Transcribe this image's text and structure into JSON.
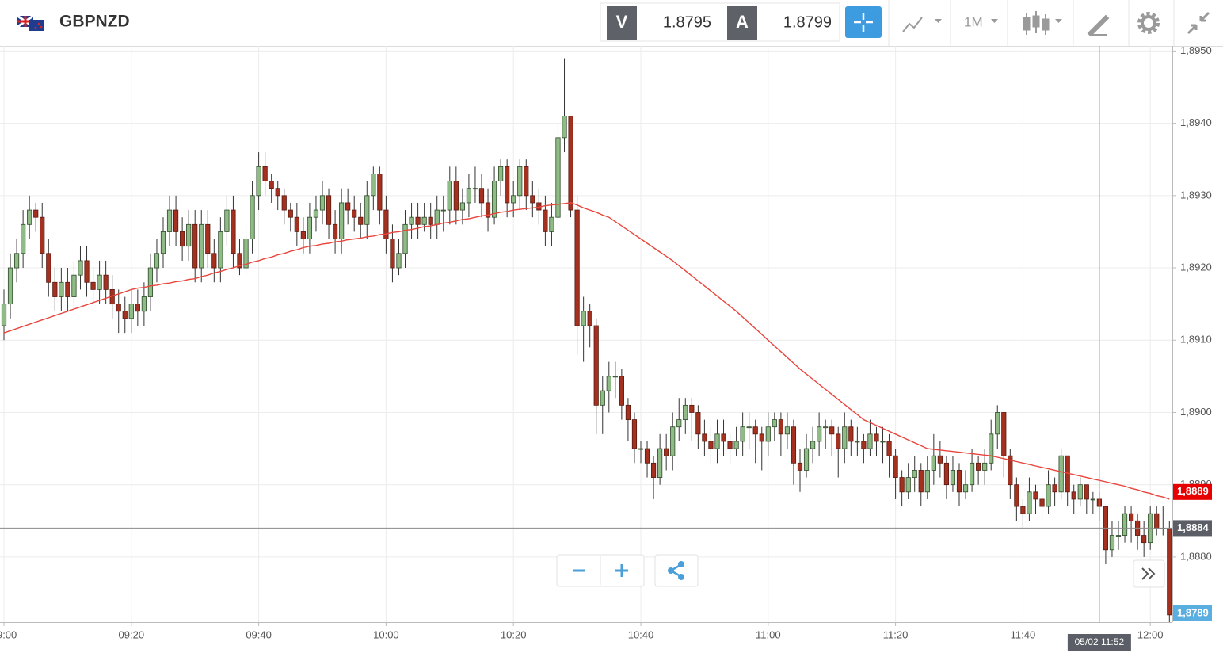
{
  "header": {
    "symbol": "GBPNZD",
    "bid_label": "V",
    "bid": "1.8795",
    "ask_label": "A",
    "ask": "1.8799",
    "timeframe": "1M"
  },
  "chart_data": {
    "type": "candlestick",
    "up_color": "#8fbc86",
    "down_color": "#a4301f",
    "candles": [
      [
        1.8912,
        1.8917,
        1.891,
        1.8915
      ],
      [
        1.8915,
        1.8922,
        1.8913,
        1.892
      ],
      [
        1.892,
        1.8924,
        1.8918,
        1.8922
      ],
      [
        1.8922,
        1.8928,
        1.892,
        1.8926
      ],
      [
        1.8926,
        1.893,
        1.8924,
        1.8928
      ],
      [
        1.8928,
        1.8929,
        1.8925,
        1.8927
      ],
      [
        1.8927,
        1.8929,
        1.892,
        1.8922
      ],
      [
        1.8922,
        1.8924,
        1.8916,
        1.8918
      ],
      [
        1.8918,
        1.892,
        1.8914,
        1.8916
      ],
      [
        1.8916,
        1.892,
        1.8914,
        1.8918
      ],
      [
        1.8918,
        1.892,
        1.8914,
        1.8916
      ],
      [
        1.8916,
        1.8921,
        1.8914,
        1.8919
      ],
      [
        1.8919,
        1.8923,
        1.8917,
        1.8921
      ],
      [
        1.8921,
        1.8923,
        1.8916,
        1.8918
      ],
      [
        1.8918,
        1.892,
        1.8915,
        1.8917
      ],
      [
        1.8917,
        1.8921,
        1.8915,
        1.8919
      ],
      [
        1.8919,
        1.8921,
        1.8915,
        1.8917
      ],
      [
        1.8917,
        1.8919,
        1.8913,
        1.8915
      ],
      [
        1.8915,
        1.8917,
        1.8911,
        1.8914
      ],
      [
        1.8914,
        1.8916,
        1.8911,
        1.8913
      ],
      [
        1.8913,
        1.8917,
        1.8911,
        1.8915
      ],
      [
        1.8915,
        1.8917,
        1.8912,
        1.8914
      ],
      [
        1.8914,
        1.8918,
        1.8912,
        1.8916
      ],
      [
        1.8916,
        1.8922,
        1.8914,
        1.892
      ],
      [
        1.892,
        1.8924,
        1.8918,
        1.8922
      ],
      [
        1.8922,
        1.8927,
        1.892,
        1.8925
      ],
      [
        1.8925,
        1.893,
        1.8923,
        1.8928
      ],
      [
        1.8928,
        1.893,
        1.8923,
        1.8925
      ],
      [
        1.8925,
        1.8927,
        1.8921,
        1.8923
      ],
      [
        1.8923,
        1.8928,
        1.8921,
        1.8926
      ],
      [
        1.8926,
        1.8928,
        1.8918,
        1.892
      ],
      [
        1.892,
        1.8928,
        1.8918,
        1.8926
      ],
      [
        1.8926,
        1.8928,
        1.892,
        1.8922
      ],
      [
        1.8922,
        1.8924,
        1.8918,
        1.892
      ],
      [
        1.892,
        1.8927,
        1.8918,
        1.8925
      ],
      [
        1.8925,
        1.893,
        1.8923,
        1.8928
      ],
      [
        1.8928,
        1.893,
        1.892,
        1.8922
      ],
      [
        1.8922,
        1.8924,
        1.8919,
        1.892
      ],
      [
        1.892,
        1.8926,
        1.8919,
        1.8924
      ],
      [
        1.8924,
        1.8932,
        1.8922,
        1.893
      ],
      [
        1.893,
        1.8936,
        1.8928,
        1.8934
      ],
      [
        1.8934,
        1.8936,
        1.893,
        1.8932
      ],
      [
        1.8932,
        1.8933,
        1.8929,
        1.8931
      ],
      [
        1.8931,
        1.8932,
        1.8928,
        1.893
      ],
      [
        1.893,
        1.8931,
        1.8926,
        1.8928
      ],
      [
        1.8928,
        1.8929,
        1.8925,
        1.8927
      ],
      [
        1.8927,
        1.8929,
        1.8923,
        1.8925
      ],
      [
        1.8925,
        1.8927,
        1.8922,
        1.8924
      ],
      [
        1.8924,
        1.8929,
        1.8922,
        1.8927
      ],
      [
        1.8927,
        1.893,
        1.8925,
        1.8928
      ],
      [
        1.8928,
        1.8932,
        1.8926,
        1.893
      ],
      [
        1.893,
        1.8931,
        1.8924,
        1.8926
      ],
      [
        1.8926,
        1.8928,
        1.8922,
        1.8924
      ],
      [
        1.8924,
        1.8931,
        1.8922,
        1.8929
      ],
      [
        1.8929,
        1.8931,
        1.8926,
        1.8928
      ],
      [
        1.8928,
        1.893,
        1.8925,
        1.8927
      ],
      [
        1.8927,
        1.8929,
        1.8924,
        1.8926
      ],
      [
        1.8926,
        1.8932,
        1.8924,
        1.893
      ],
      [
        1.893,
        1.8934,
        1.8928,
        1.8933
      ],
      [
        1.8933,
        1.8934,
        1.8926,
        1.8928
      ],
      [
        1.8928,
        1.893,
        1.8922,
        1.8924
      ],
      [
        1.8924,
        1.8926,
        1.8918,
        1.892
      ],
      [
        1.892,
        1.8924,
        1.8919,
        1.8922
      ],
      [
        1.8922,
        1.8928,
        1.892,
        1.8926
      ],
      [
        1.8926,
        1.8929,
        1.8924,
        1.8927
      ],
      [
        1.8927,
        1.8929,
        1.8924,
        1.8926
      ],
      [
        1.8926,
        1.8929,
        1.8925,
        1.8927
      ],
      [
        1.8927,
        1.8929,
        1.8924,
        1.8926
      ],
      [
        1.8926,
        1.893,
        1.8924,
        1.8928
      ],
      [
        1.8928,
        1.893,
        1.8925,
        1.8928
      ],
      [
        1.8928,
        1.8934,
        1.8926,
        1.8932
      ],
      [
        1.8932,
        1.8934,
        1.8926,
        1.8928
      ],
      [
        1.8928,
        1.8931,
        1.8926,
        1.8929
      ],
      [
        1.8929,
        1.8933,
        1.8927,
        1.8931
      ],
      [
        1.8931,
        1.8934,
        1.8929,
        1.8931
      ],
      [
        1.8931,
        1.8933,
        1.8927,
        1.8929
      ],
      [
        1.8929,
        1.8931,
        1.8925,
        1.8927
      ],
      [
        1.8927,
        1.8934,
        1.8926,
        1.8932
      ],
      [
        1.8932,
        1.8935,
        1.893,
        1.8934
      ],
      [
        1.8934,
        1.8935,
        1.8927,
        1.8929
      ],
      [
        1.8929,
        1.8932,
        1.8927,
        1.893
      ],
      [
        1.893,
        1.8935,
        1.8928,
        1.8934
      ],
      [
        1.8934,
        1.8935,
        1.8928,
        1.893
      ],
      [
        1.893,
        1.8932,
        1.8927,
        1.8929
      ],
      [
        1.8929,
        1.8931,
        1.8926,
        1.8928
      ],
      [
        1.8928,
        1.893,
        1.8923,
        1.8925
      ],
      [
        1.8925,
        1.8929,
        1.8923,
        1.8927
      ],
      [
        1.8927,
        1.894,
        1.8926,
        1.8938
      ],
      [
        1.8938,
        1.8949,
        1.8936,
        1.8941
      ],
      [
        1.8941,
        1.8941,
        1.8927,
        1.8928
      ],
      [
        1.8928,
        1.893,
        1.8908,
        1.8912
      ],
      [
        1.8912,
        1.8916,
        1.8907,
        1.8914
      ],
      [
        1.8914,
        1.8915,
        1.8909,
        1.8912
      ],
      [
        1.8912,
        1.8913,
        1.8897,
        1.8901
      ],
      [
        1.8901,
        1.8905,
        1.8897,
        1.8903
      ],
      [
        1.8903,
        1.8907,
        1.89,
        1.8905
      ],
      [
        1.8905,
        1.8907,
        1.8902,
        1.8905
      ],
      [
        1.8905,
        1.8906,
        1.8899,
        1.8901
      ],
      [
        1.8901,
        1.8902,
        1.8896,
        1.8899
      ],
      [
        1.8899,
        1.89,
        1.8893,
        1.8895
      ],
      [
        1.8895,
        1.8896,
        1.8893,
        1.8895
      ],
      [
        1.8895,
        1.8896,
        1.8891,
        1.8893
      ],
      [
        1.8893,
        1.8894,
        1.8888,
        1.8891
      ],
      [
        1.8891,
        1.8897,
        1.889,
        1.8895
      ],
      [
        1.8895,
        1.8897,
        1.8892,
        1.8894
      ],
      [
        1.8894,
        1.89,
        1.8892,
        1.8898
      ],
      [
        1.8898,
        1.8902,
        1.8896,
        1.8899
      ],
      [
        1.8899,
        1.8902,
        1.8897,
        1.8901
      ],
      [
        1.8901,
        1.8902,
        1.8896,
        1.89
      ],
      [
        1.89,
        1.8901,
        1.8895,
        1.8897
      ],
      [
        1.8897,
        1.8899,
        1.8894,
        1.8896
      ],
      [
        1.8896,
        1.8898,
        1.8893,
        1.8895
      ],
      [
        1.8895,
        1.8899,
        1.8893,
        1.8897
      ],
      [
        1.8897,
        1.8899,
        1.8894,
        1.8896
      ],
      [
        1.8896,
        1.8897,
        1.8893,
        1.8895
      ],
      [
        1.8895,
        1.8898,
        1.8894,
        1.8896
      ],
      [
        1.8896,
        1.89,
        1.8894,
        1.8898
      ],
      [
        1.8898,
        1.89,
        1.8895,
        1.8898
      ],
      [
        1.8898,
        1.8899,
        1.8893,
        1.8897
      ],
      [
        1.8897,
        1.8898,
        1.8892,
        1.8896
      ],
      [
        1.8896,
        1.89,
        1.8894,
        1.8898
      ],
      [
        1.8898,
        1.89,
        1.8896,
        1.8899
      ],
      [
        1.8899,
        1.89,
        1.8894,
        1.8897
      ],
      [
        1.8897,
        1.89,
        1.8895,
        1.8898
      ],
      [
        1.8898,
        1.8899,
        1.889,
        1.8893
      ],
      [
        1.8893,
        1.8895,
        1.8889,
        1.8892
      ],
      [
        1.8892,
        1.8897,
        1.8891,
        1.8895
      ],
      [
        1.8895,
        1.8898,
        1.8893,
        1.8896
      ],
      [
        1.8896,
        1.89,
        1.8894,
        1.8898
      ],
      [
        1.8898,
        1.8899,
        1.8895,
        1.8898
      ],
      [
        1.8898,
        1.8899,
        1.8894,
        1.8897
      ],
      [
        1.8897,
        1.8898,
        1.8891,
        1.8895
      ],
      [
        1.8895,
        1.89,
        1.8893,
        1.8898
      ],
      [
        1.8898,
        1.8899,
        1.8894,
        1.8896
      ],
      [
        1.8896,
        1.8898,
        1.8894,
        1.8896
      ],
      [
        1.8896,
        1.8897,
        1.8893,
        1.8895
      ],
      [
        1.8895,
        1.8899,
        1.8894,
        1.8897
      ],
      [
        1.8897,
        1.8898,
        1.8894,
        1.8896
      ],
      [
        1.8896,
        1.8898,
        1.8893,
        1.8896
      ],
      [
        1.8896,
        1.8897,
        1.8891,
        1.8894
      ],
      [
        1.8894,
        1.8895,
        1.8888,
        1.8891
      ],
      [
        1.8891,
        1.8892,
        1.8887,
        1.8889
      ],
      [
        1.8889,
        1.8893,
        1.8888,
        1.8891
      ],
      [
        1.8891,
        1.8894,
        1.8889,
        1.8892
      ],
      [
        1.8892,
        1.8893,
        1.8887,
        1.8889
      ],
      [
        1.8889,
        1.8894,
        1.8888,
        1.8892
      ],
      [
        1.8892,
        1.8897,
        1.889,
        1.8894
      ],
      [
        1.8894,
        1.8896,
        1.8891,
        1.8893
      ],
      [
        1.8893,
        1.8894,
        1.8888,
        1.889
      ],
      [
        1.889,
        1.8894,
        1.8889,
        1.8892
      ],
      [
        1.8892,
        1.8893,
        1.8887,
        1.8889
      ],
      [
        1.8889,
        1.8892,
        1.8888,
        1.889
      ],
      [
        1.889,
        1.8895,
        1.8889,
        1.8893
      ],
      [
        1.8893,
        1.8894,
        1.889,
        1.8892
      ],
      [
        1.8892,
        1.8895,
        1.889,
        1.8893
      ],
      [
        1.8893,
        1.8899,
        1.8892,
        1.8897
      ],
      [
        1.8897,
        1.8901,
        1.8895,
        1.89
      ],
      [
        1.89,
        1.89,
        1.8891,
        1.8894
      ],
      [
        1.8894,
        1.8895,
        1.8888,
        1.889
      ],
      [
        1.889,
        1.8891,
        1.8885,
        1.8887
      ],
      [
        1.8887,
        1.8888,
        1.8884,
        1.8886
      ],
      [
        1.8886,
        1.8891,
        1.8885,
        1.8889
      ],
      [
        1.8889,
        1.889,
        1.8886,
        1.8888
      ],
      [
        1.8888,
        1.8889,
        1.8885,
        1.8887
      ],
      [
        1.8887,
        1.8892,
        1.8886,
        1.889
      ],
      [
        1.889,
        1.8891,
        1.8887,
        1.8889
      ],
      [
        1.8889,
        1.8895,
        1.8888,
        1.8894
      ],
      [
        1.8894,
        1.8894,
        1.8887,
        1.8889
      ],
      [
        1.8889,
        1.889,
        1.8886,
        1.8888
      ],
      [
        1.8888,
        1.8891,
        1.8887,
        1.889
      ],
      [
        1.889,
        1.889,
        1.8886,
        1.8888
      ],
      [
        1.8888,
        1.8889,
        1.8886,
        1.8888
      ],
      [
        1.8888,
        1.8889,
        1.8885,
        1.8887
      ],
      [
        1.8887,
        1.8887,
        1.8879,
        1.8881
      ],
      [
        1.8881,
        1.8885,
        1.888,
        1.8883
      ],
      [
        1.8883,
        1.8885,
        1.8881,
        1.8883
      ],
      [
        1.8883,
        1.8887,
        1.8882,
        1.8886
      ],
      [
        1.8886,
        1.8887,
        1.8882,
        1.8885
      ],
      [
        1.8885,
        1.8886,
        1.8881,
        1.8883
      ],
      [
        1.8883,
        1.8885,
        1.888,
        1.8882
      ],
      [
        1.8882,
        1.8887,
        1.8881,
        1.8886
      ],
      [
        1.8886,
        1.8887,
        1.8883,
        1.8884
      ],
      [
        1.8884,
        1.8887,
        1.8883,
        1.8884
      ],
      [
        1.8884,
        1.8885,
        1.8871,
        1.8872
      ]
    ],
    "ema": {
      "color": "#e8453c",
      "values": [
        1.8911,
        1.89113,
        1.89116,
        1.89119,
        1.89122,
        1.89125,
        1.89128,
        1.89131,
        1.89134,
        1.89137,
        1.8914,
        1.89143,
        1.89146,
        1.89149,
        1.89152,
        1.89155,
        1.89158,
        1.89161,
        1.89164,
        1.89167,
        1.8917,
        1.89172,
        1.89173,
        1.89175,
        1.89176,
        1.89178,
        1.89179,
        1.89181,
        1.89182,
        1.89184,
        1.89185,
        1.89188,
        1.8919,
        1.89193,
        1.89195,
        1.89198,
        1.892,
        1.89203,
        1.89205,
        1.89208,
        1.8921,
        1.89213,
        1.89215,
        1.89218,
        1.8922,
        1.89223,
        1.89225,
        1.89228,
        1.8923,
        1.89231,
        1.89233,
        1.89234,
        1.89236,
        1.89237,
        1.89239,
        1.8924,
        1.89241,
        1.89243,
        1.89244,
        1.89246,
        1.89247,
        1.89249,
        1.8925,
        1.89252,
        1.89253,
        1.89255,
        1.89257,
        1.89258,
        1.8926,
        1.89262,
        1.89263,
        1.89265,
        1.89267,
        1.89268,
        1.8927,
        1.89272,
        1.89273,
        1.89275,
        1.89277,
        1.89278,
        1.8928,
        1.89281,
        1.89282,
        1.89283,
        1.89284,
        1.89286,
        1.89287,
        1.89288,
        1.89289,
        1.8929,
        1.89287,
        1.89283,
        1.8928,
        1.89277,
        1.89273,
        1.8927,
        1.89264,
        1.89258,
        1.89252,
        1.89246,
        1.8924,
        1.89234,
        1.89228,
        1.89222,
        1.89216,
        1.8921,
        1.89203,
        1.89196,
        1.89189,
        1.89182,
        1.89175,
        1.89168,
        1.89161,
        1.89154,
        1.89147,
        1.8914,
        1.89132,
        1.89124,
        1.89116,
        1.89108,
        1.891,
        1.89092,
        1.89084,
        1.89076,
        1.89068,
        1.8906,
        1.89053,
        1.89046,
        1.89039,
        1.89032,
        1.89025,
        1.89018,
        1.89011,
        1.89004,
        1.88997,
        1.8899,
        1.88986,
        1.88982,
        1.88978,
        1.88974,
        1.8897,
        1.88966,
        1.88962,
        1.88958,
        1.88954,
        1.8895,
        1.88949,
        1.88948,
        1.88947,
        1.88946,
        1.88945,
        1.88944,
        1.88943,
        1.88942,
        1.88941,
        1.8894,
        1.88938,
        1.88936,
        1.88934,
        1.88932,
        1.8893,
        1.88928,
        1.88926,
        1.88924,
        1.88922,
        1.8892,
        1.88918,
        1.88916,
        1.88914,
        1.88912,
        1.8891,
        1.88908,
        1.88906,
        1.88904,
        1.88902,
        1.889,
        1.88898,
        1.88895,
        1.88893,
        1.8889,
        1.88888,
        1.88885,
        1.88883,
        1.8888
      ]
    },
    "ylim": [
      1.8871,
      1.89507
    ],
    "yticks": [
      {
        "value": 1.895,
        "label": "1,8950"
      },
      {
        "value": 1.894,
        "label": "1,8940"
      },
      {
        "value": 1.893,
        "label": "1,8930"
      },
      {
        "value": 1.892,
        "label": "1,8920"
      },
      {
        "value": 1.891,
        "label": "1,8910"
      },
      {
        "value": 1.89,
        "label": "1,8900"
      },
      {
        "value": 1.889,
        "label": "1,8890"
      },
      {
        "value": 1.888,
        "label": "1,8880"
      }
    ],
    "xticks": [
      "09:00",
      "09:20",
      "09:40",
      "10:00",
      "10:20",
      "10:40",
      "11:00",
      "11:20",
      "11:40",
      "12:00"
    ],
    "grid": true,
    "price_labels": [
      {
        "value": 1.8889,
        "label": "1,8889",
        "color": "#e60000"
      },
      {
        "value": 1.8789,
        "label": "1,8789",
        "color": "#5aaee0"
      }
    ],
    "crosshair": {
      "time": "05/02 11:52",
      "price": {
        "value": 1.8884,
        "label": "1,8884"
      },
      "color": "#5b5e66"
    }
  }
}
